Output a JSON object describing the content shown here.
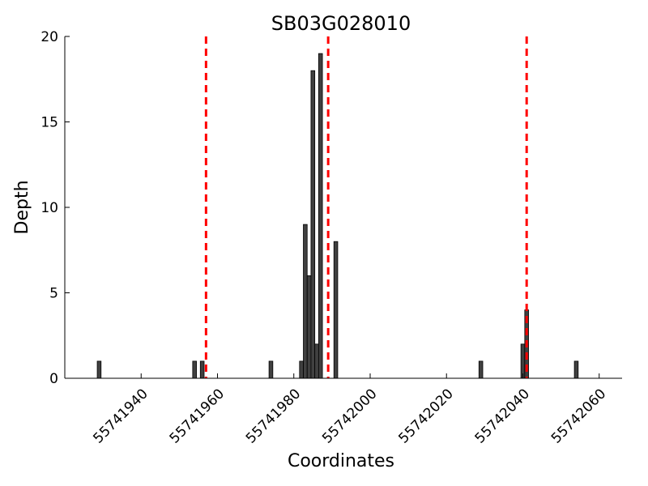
{
  "chart_data": {
    "type": "bar",
    "title": "SB03G028010",
    "xlabel": "Coordinates",
    "ylabel": "Depth",
    "xlim": [
      55741920,
      55742066
    ],
    "ylim": [
      0,
      20
    ],
    "x_ticks": [
      55741940,
      55741960,
      55741980,
      55742000,
      55742020,
      55742040,
      55742060
    ],
    "y_ticks": [
      0,
      5,
      10,
      15,
      20
    ],
    "bar_width": 1,
    "bar_color": "#404040",
    "bar_edge_color": "#000000",
    "reference_line_color": "#ff0000",
    "reference_lines": [
      55741957,
      55741989,
      55742041
    ],
    "grid": false,
    "series": [
      {
        "x": [
          55741929,
          55741954,
          55741956,
          55741974,
          55741982,
          55741983,
          55741984,
          55741985,
          55741986,
          55741987,
          55741988,
          55741989,
          55741990,
          55741991,
          55741992,
          55741993,
          55742029,
          55742040,
          55742041,
          55742054
        ],
        "values": [
          1,
          1,
          1,
          1,
          1,
          9,
          6,
          18,
          2,
          19,
          0,
          0,
          0,
          8,
          0,
          0,
          1,
          2,
          4,
          1
        ]
      }
    ]
  }
}
